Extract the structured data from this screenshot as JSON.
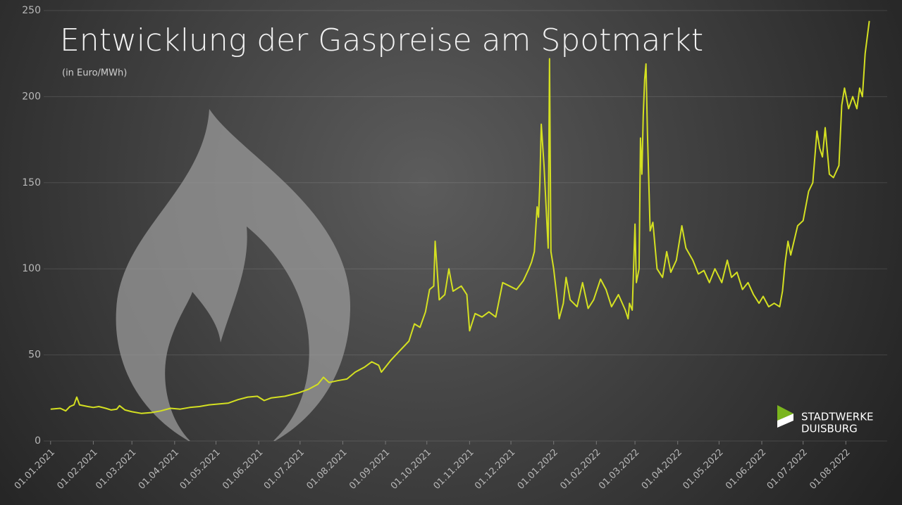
{
  "chart_data": {
    "type": "line",
    "title": "Entwicklung der Gaspreise am Spotmarkt",
    "subtitle": "(in Euro/MWh)",
    "x": [
      "2021-01-01",
      "2021-01-08",
      "2021-01-12",
      "2021-01-15",
      "2021-01-18",
      "2021-01-20",
      "2021-01-22",
      "2021-01-28",
      "2021-02-01",
      "2021-02-05",
      "2021-02-10",
      "2021-02-14",
      "2021-02-18",
      "2021-02-20",
      "2021-02-24",
      "2021-03-01",
      "2021-03-08",
      "2021-03-15",
      "2021-03-22",
      "2021-03-29",
      "2021-04-05",
      "2021-04-12",
      "2021-04-19",
      "2021-04-26",
      "2021-05-03",
      "2021-05-10",
      "2021-05-17",
      "2021-05-24",
      "2021-05-31",
      "2021-06-05",
      "2021-06-10",
      "2021-06-20",
      "2021-06-30",
      "2021-07-07",
      "2021-07-14",
      "2021-07-18",
      "2021-07-22",
      "2021-07-28",
      "2021-08-04",
      "2021-08-10",
      "2021-08-17",
      "2021-08-22",
      "2021-08-27",
      "2021-08-29",
      "2021-09-05",
      "2021-09-12",
      "2021-09-18",
      "2021-09-22",
      "2021-09-26",
      "2021-09-30",
      "2021-10-03",
      "2021-10-06",
      "2021-10-07",
      "2021-10-10",
      "2021-10-14",
      "2021-10-17",
      "2021-10-20",
      "2021-10-26",
      "2021-10-30",
      "2021-11-01",
      "2021-11-05",
      "2021-11-10",
      "2021-11-15",
      "2021-11-20",
      "2021-11-25",
      "2021-11-30",
      "2021-12-05",
      "2021-12-10",
      "2021-12-14",
      "2021-12-16",
      "2021-12-18",
      "2021-12-20",
      "2021-12-21",
      "2021-12-22",
      "2021-12-23",
      "2021-12-25",
      "2021-12-28",
      "2021-12-29",
      "2021-12-30",
      "2022-01-01",
      "2022-01-03",
      "2022-01-05",
      "2022-01-08",
      "2022-01-10",
      "2022-01-13",
      "2022-01-18",
      "2022-01-22",
      "2022-01-26",
      "2022-01-30",
      "2022-02-04",
      "2022-02-08",
      "2022-02-12",
      "2022-02-17",
      "2022-02-22",
      "2022-02-24",
      "2022-02-25",
      "2022-02-27",
      "2022-03-01",
      "2022-03-02",
      "2022-03-04",
      "2022-03-05",
      "2022-03-06",
      "2022-03-07",
      "2022-03-08",
      "2022-03-09",
      "2022-03-10",
      "2022-03-12",
      "2022-03-14",
      "2022-03-17",
      "2022-03-21",
      "2022-03-24",
      "2022-03-27",
      "2022-03-31",
      "2022-04-04",
      "2022-04-07",
      "2022-04-12",
      "2022-04-16",
      "2022-04-20",
      "2022-04-24",
      "2022-04-28",
      "2022-05-03",
      "2022-05-07",
      "2022-05-10",
      "2022-05-14",
      "2022-05-18",
      "2022-05-22",
      "2022-05-26",
      "2022-05-30",
      "2022-06-02",
      "2022-06-06",
      "2022-06-10",
      "2022-06-14",
      "2022-06-16",
      "2022-06-18",
      "2022-06-20",
      "2022-06-22",
      "2022-06-27",
      "2022-07-01",
      "2022-07-05",
      "2022-07-08",
      "2022-07-11",
      "2022-07-13",
      "2022-07-15",
      "2022-07-17",
      "2022-07-20",
      "2022-07-23",
      "2022-07-27",
      "2022-07-29",
      "2022-07-31",
      "2022-08-03",
      "2022-08-06",
      "2022-08-09",
      "2022-08-11",
      "2022-08-13",
      "2022-08-15",
      "2022-08-18"
    ],
    "series": [
      {
        "name": "Gaspreis",
        "color": "#d4e021",
        "values": [
          18.5,
          19,
          17.5,
          20,
          21,
          25.5,
          21,
          20,
          19.5,
          20,
          19,
          18,
          18.5,
          20.5,
          18,
          17,
          16,
          16.5,
          17.5,
          19,
          18.5,
          19.5,
          20,
          21,
          21.5,
          22,
          24,
          25.5,
          26,
          23.5,
          25,
          26,
          28,
          30,
          33,
          37,
          34,
          35,
          36,
          40,
          43,
          46,
          44,
          40,
          47,
          53,
          58,
          68,
          66,
          75,
          88,
          90,
          116,
          82,
          85,
          100,
          87,
          90,
          85,
          64,
          74,
          72,
          75,
          72,
          92,
          90,
          88,
          93,
          100,
          104,
          110,
          136,
          130,
          150,
          184,
          160,
          112,
          222,
          110,
          100,
          86,
          71,
          80,
          95,
          82,
          78,
          92,
          77,
          82,
          94,
          88,
          78,
          85,
          76,
          71,
          80,
          76,
          126,
          92,
          100,
          176,
          155,
          189,
          210,
          219,
          180,
          122,
          127,
          100,
          95,
          110,
          98,
          105,
          125,
          112,
          105,
          97,
          99,
          92,
          100,
          92,
          105,
          95,
          98,
          88,
          92,
          85,
          80,
          84,
          78,
          80,
          78,
          87,
          104,
          116,
          108,
          125,
          128,
          145,
          150,
          180,
          170,
          165,
          182,
          155,
          153,
          160,
          195,
          205,
          193,
          200,
          193,
          205,
          200,
          225,
          244
        ]
      }
    ],
    "xlim": [
      "2020-12-27",
      "2022-08-31"
    ],
    "xticks": [
      {
        "value": "2021-01-01",
        "label": "01.01.2021"
      },
      {
        "value": "2021-02-01",
        "label": "01.02.2021"
      },
      {
        "value": "2021-03-01",
        "label": "01.03.2021"
      },
      {
        "value": "2021-04-01",
        "label": "01.04.2021"
      },
      {
        "value": "2021-05-01",
        "label": "01.05.2021"
      },
      {
        "value": "2021-06-01",
        "label": "01.06.2021"
      },
      {
        "value": "2021-07-01",
        "label": "01.07.2021"
      },
      {
        "value": "2021-08-01",
        "label": "01.08.2021"
      },
      {
        "value": "2021-09-01",
        "label": "01.09.2021"
      },
      {
        "value": "2021-10-01",
        "label": "01.10.2021"
      },
      {
        "value": "2021-11-01",
        "label": "01.11.2021"
      },
      {
        "value": "2021-12-01",
        "label": "01.12.2021"
      },
      {
        "value": "2022-01-01",
        "label": "01.01.2022"
      },
      {
        "value": "2022-02-01",
        "label": "01.02.2022"
      },
      {
        "value": "2022-03-01",
        "label": "01.03.2022"
      },
      {
        "value": "2022-04-01",
        "label": "01.04.2022"
      },
      {
        "value": "2022-05-01",
        "label": "01.05.2022"
      },
      {
        "value": "2022-06-01",
        "label": "01.06.2022"
      },
      {
        "value": "2022-07-01",
        "label": "01.07.2022"
      },
      {
        "value": "2022-08-01",
        "label": "01.08.2022"
      }
    ],
    "ylim": [
      0,
      250
    ],
    "yticks": [
      0,
      50,
      100,
      150,
      200,
      250
    ],
    "grid": true
  },
  "logo": {
    "line1": "STADTWERKE",
    "line2": "DUISBURG"
  }
}
